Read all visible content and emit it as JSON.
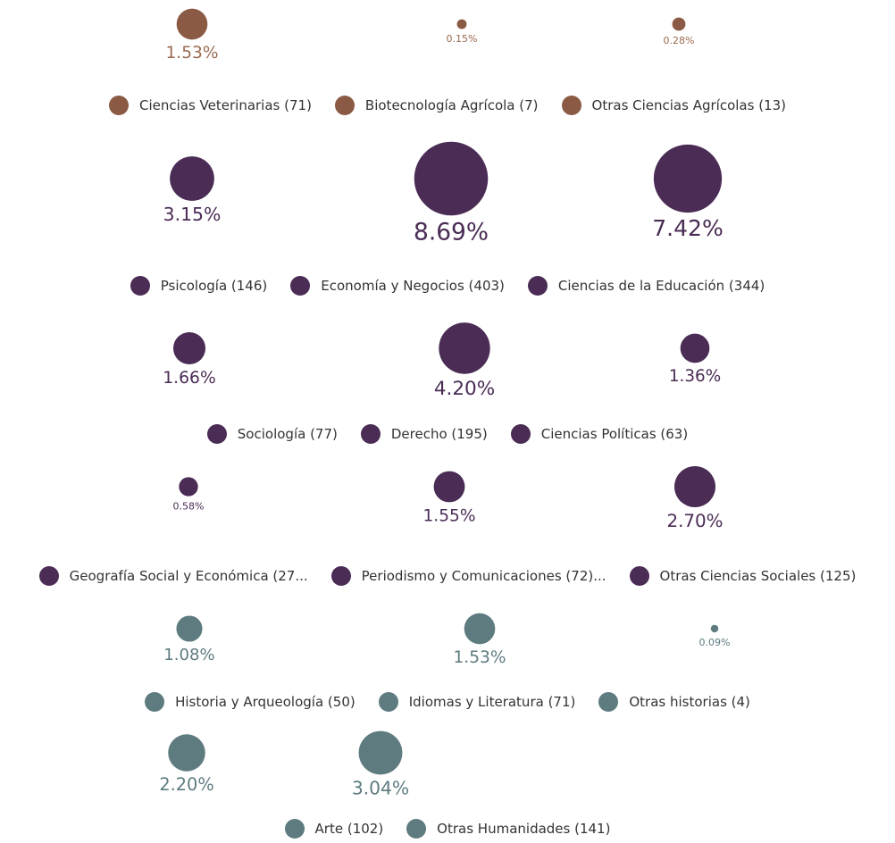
{
  "groups": [
    {
      "color": "#8b5a44",
      "text_color": "#9a6a4f",
      "values": [
        1.53,
        0.15,
        0.28
      ],
      "value_labels": [
        "1.53%",
        "0.15%",
        "0.28%"
      ],
      "labels": [
        "Ciencias Veterinarias (71)",
        "Biotecnología Agrícola (7)",
        "Otras Ciencias Agrícolas (13)"
      ]
    },
    {
      "color": "#4a2c55",
      "text_color": "#4a2c55",
      "values": [
        3.15,
        8.69,
        7.42
      ],
      "value_labels": [
        "3.15%",
        "8.69%",
        "7.42%"
      ],
      "labels": [
        "Psicología (146)",
        "Economía y Negocios (403)",
        "Ciencias de la Educación (344)"
      ]
    },
    {
      "color": "#4a2c55",
      "text_color": "#4a2c55",
      "values": [
        1.66,
        4.2,
        1.36
      ],
      "value_labels": [
        "1.66%",
        "4.20%",
        "1.36%"
      ],
      "labels": [
        "Sociología (77)",
        "Derecho (195)",
        "Ciencias Políticas (63)"
      ]
    },
    {
      "color": "#4a2c55",
      "text_color": "#4a2c55",
      "values": [
        0.58,
        1.55,
        2.7
      ],
      "value_labels": [
        "0.58%",
        "1.55%",
        "2.70%"
      ],
      "labels": [
        "Geografía Social y Económica (27...",
        "Periodismo y Comunicaciones (72)...",
        "Otras Ciencias Sociales (125)"
      ]
    },
    {
      "color": "#5e7b80",
      "text_color": "#5e7b80",
      "values": [
        1.08,
        1.53,
        0.09
      ],
      "value_labels": [
        "1.08%",
        "1.53%",
        "0.09%"
      ],
      "labels": [
        "Historia y Arqueología (50)",
        "Idiomas y Literatura (71)",
        "Otras historias (4)"
      ]
    },
    {
      "color": "#5e7b80",
      "text_color": "#5e7b80",
      "values": [
        2.2,
        3.04
      ],
      "value_labels": [
        "2.20%",
        "3.04%"
      ],
      "labels": [
        "Arte (102)",
        "Otras Humanidades (141)"
      ]
    }
  ]
}
